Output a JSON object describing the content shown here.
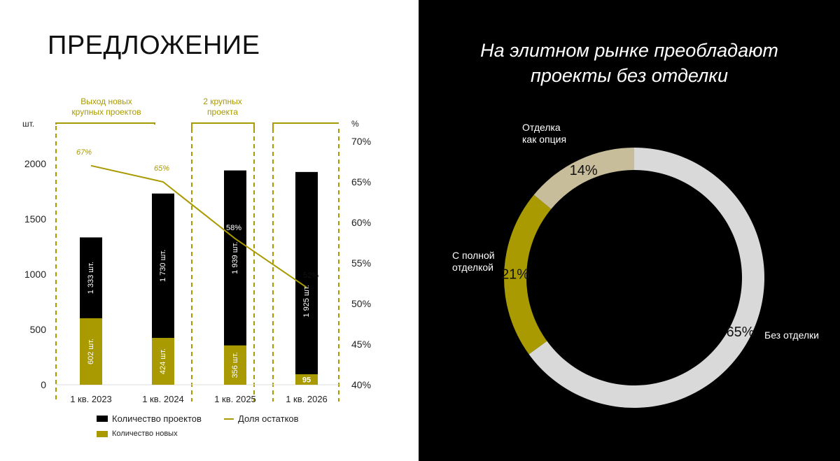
{
  "left_panel": {
    "title": "ПРЕДЛОЖЕНИЕ",
    "annotations": [
      "Выход новых крупных проектов",
      "2 крупных проекта"
    ],
    "annotation_lines": [
      [
        "Выход новых",
        "крупных проектов"
      ],
      [
        "2 крупных",
        "проекта"
      ]
    ],
    "legend": {
      "projects": "Количество проектов",
      "share": "Доля остатков",
      "new": "Количество новых"
    }
  },
  "right_panel": {
    "title_lines": [
      "На элитном рынке преобладают",
      "проекты без отделки"
    ],
    "slice_labels": {
      "option": [
        "Отделка",
        "как опция"
      ],
      "full": [
        "С полной",
        "отделкой"
      ],
      "none": [
        "Без отделки"
      ]
    }
  },
  "colors": {
    "black": "#000000",
    "gold": "#a89a00",
    "beige": "#c7bd9a",
    "light_gray": "#d9d9d9",
    "text_dark": "#222222"
  },
  "chart_data": [
    {
      "type": "bar",
      "categories": [
        "1 кв. 2023",
        "1 кв. 2024",
        "1 кв. 2025",
        "1 кв. 2026"
      ],
      "ylabel": "шт.",
      "ylim": [
        0,
        2000
      ],
      "y_ticks": [
        0,
        500,
        1000,
        1500,
        2000
      ],
      "y2label": "%",
      "y2lim": [
        40,
        70
      ],
      "y2_ticks": [
        "40%",
        "45%",
        "50%",
        "55%",
        "60%",
        "65%",
        "70%"
      ],
      "series": [
        {
          "name": "Количество проектов",
          "values": [
            1333,
            1730,
            1939,
            1925
          ],
          "labels": [
            "1 333 шт.",
            "1 730 шт.",
            "1 939 шт.",
            "1 925 шт."
          ]
        },
        {
          "name": "Количество новых",
          "values": [
            602,
            424,
            356,
            95
          ],
          "labels": [
            "602 шт.",
            "424 шт.",
            "356 шт.",
            "95"
          ]
        },
        {
          "name": "Доля остатков",
          "values": [
            67,
            65,
            58,
            52
          ],
          "labels": [
            "67%",
            "65%",
            "58%",
            "52%"
          ],
          "axis": "right"
        }
      ],
      "legend_position": "bottom",
      "grid": false
    },
    {
      "type": "pie",
      "style": "donut",
      "slices": [
        {
          "label": "Без отделки",
          "value": 65,
          "value_label": "65%"
        },
        {
          "label": "С полной отделкой",
          "value": 21,
          "value_label": "21%"
        },
        {
          "label": "Отделка как опция",
          "value": 14,
          "value_label": "14%"
        }
      ]
    }
  ]
}
